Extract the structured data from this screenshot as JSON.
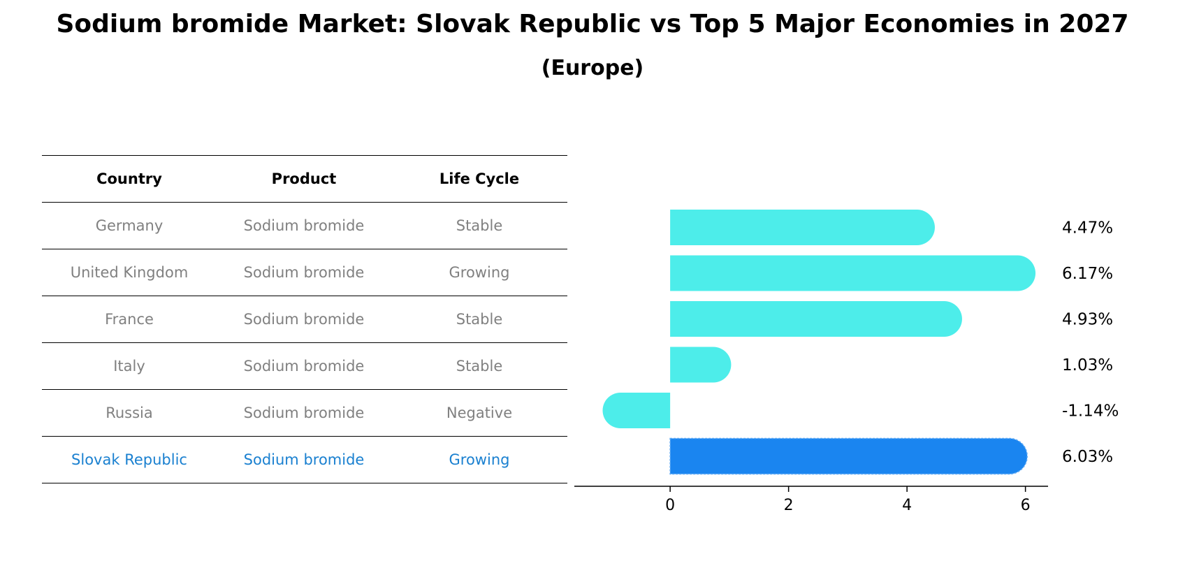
{
  "title": "Sodium bromide Market: Slovak Republic vs Top 5 Major Economies in 2027",
  "subtitle": "(Europe)",
  "table": {
    "headers": [
      "Country",
      "Product",
      "Life Cycle"
    ],
    "rows": [
      [
        "Germany",
        "Sodium bromide",
        "Stable"
      ],
      [
        "United Kingdom",
        "Sodium bromide",
        "Growing"
      ],
      [
        "France",
        "Sodium bromide",
        "Stable"
      ],
      [
        "Italy",
        "Sodium bromide",
        "Stable"
      ],
      [
        "Russia",
        "Sodium bromide",
        "Negative"
      ],
      [
        "Slovak Republic",
        "Sodium bromide",
        "Growing"
      ]
    ]
  },
  "colors": {
    "bar": "#4dedea",
    "highlight": "#1a85f0",
    "highlight_text": "#1a80d0",
    "muted_text": "#808080"
  },
  "chart_data": {
    "type": "bar",
    "orientation": "horizontal",
    "categories": [
      "Germany",
      "United Kingdom",
      "France",
      "Italy",
      "Russia",
      "Slovak Republic"
    ],
    "values": [
      4.47,
      6.17,
      4.93,
      1.03,
      -1.14,
      6.03
    ],
    "value_labels": [
      "4.47%",
      "6.17%",
      "4.93%",
      "1.03%",
      "-1.14%",
      "6.03%"
    ],
    "highlight_index": 5,
    "xlim": [
      -1.5,
      6.5
    ],
    "xticks": [
      0,
      2,
      4,
      6
    ],
    "xtick_labels": [
      "0",
      "2",
      "4",
      "6"
    ],
    "title": "",
    "xlabel": "",
    "ylabel": ""
  }
}
